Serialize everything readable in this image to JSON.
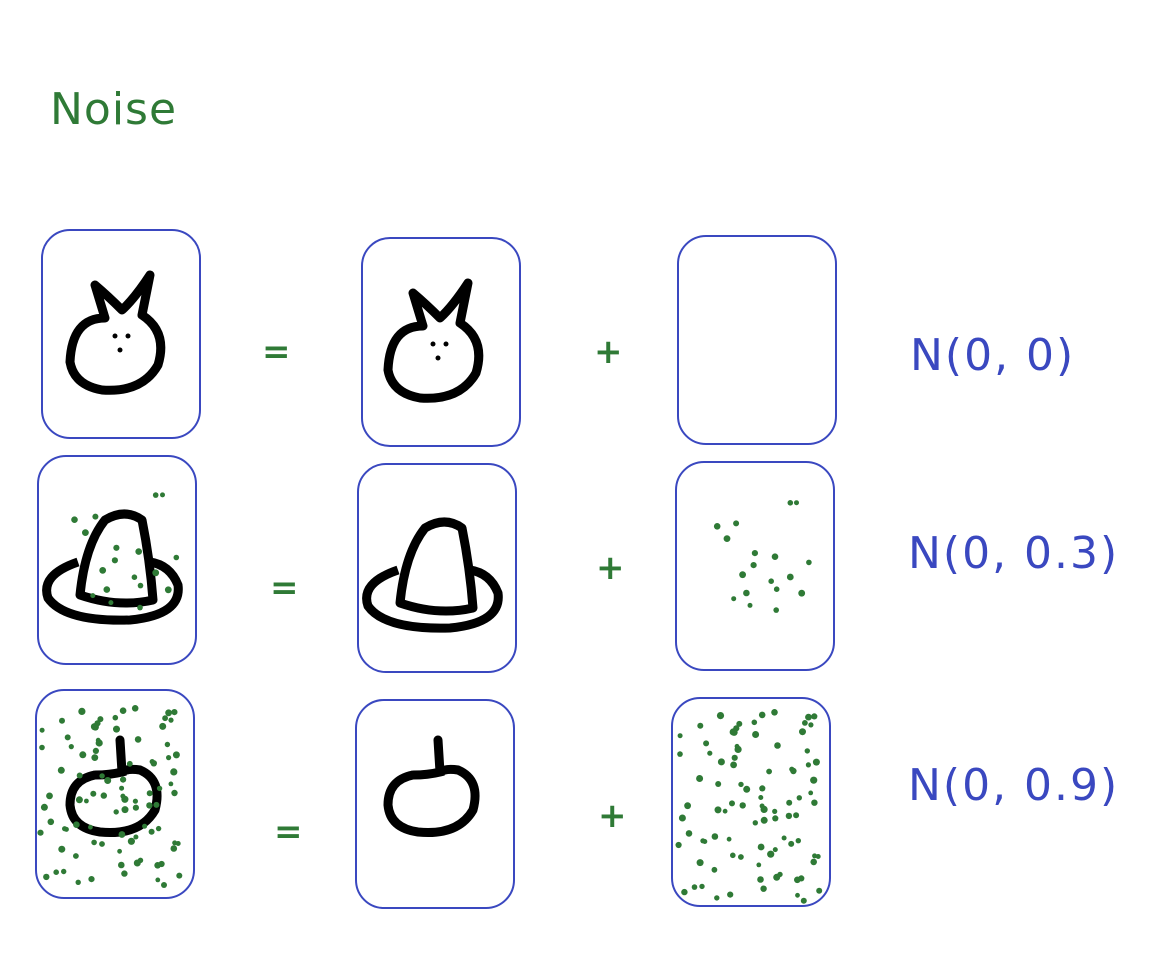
{
  "title": "Noise",
  "rows": [
    {
      "equals": "=",
      "plus": "+",
      "distribution": "N(0, 0)"
    },
    {
      "equals": "=",
      "plus": "+",
      "distribution": "N(0, 0.3)"
    },
    {
      "equals": "=",
      "plus": "+",
      "distribution": "N(0, 0.9)"
    }
  ],
  "colors": {
    "box_border": "#3a48c0",
    "noise_dot": "#2f7a36",
    "drawing": "#000000",
    "label": "#3a48c0",
    "symbol": "#2f7a36"
  },
  "icons": {
    "row1": "cat-face-icon",
    "row2": "hat-icon",
    "row3": "apple-icon"
  }
}
